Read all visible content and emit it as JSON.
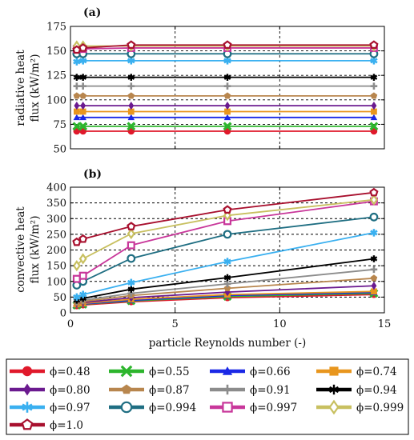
{
  "chart_data": [
    {
      "type": "line",
      "panel_label": "(a)",
      "ylabel_line1": "radiative heat",
      "ylabel_line2": "flux (kW/m²)",
      "xlim": [
        0,
        15
      ],
      "ylim": [
        50,
        175
      ],
      "yticks": [
        50,
        75,
        100,
        125,
        150,
        175
      ],
      "xticks": [
        0,
        5,
        10,
        15
      ],
      "grid": true,
      "x": [
        0.3,
        0.6,
        2.9,
        7.5,
        14.5
      ],
      "series": [
        {
          "name": "ϕ=0.48",
          "color": "#e0192b",
          "marker": "circle",
          "values": [
            68,
            68,
            68,
            68,
            68
          ]
        },
        {
          "name": "ϕ=0.55",
          "color": "#2db52d",
          "marker": "x",
          "values": [
            73,
            73,
            73,
            73,
            73
          ]
        },
        {
          "name": "ϕ=0.66",
          "color": "#1a28e6",
          "marker": "triangle",
          "values": [
            82,
            82,
            82,
            82,
            82
          ]
        },
        {
          "name": "ϕ=0.74",
          "color": "#e8961e",
          "marker": "square",
          "values": [
            88,
            88,
            88,
            88,
            88
          ]
        },
        {
          "name": "ϕ=0.80",
          "color": "#6b1a8f",
          "marker": "diamond",
          "values": [
            94,
            94,
            94,
            94,
            94
          ]
        },
        {
          "name": "ϕ=0.87",
          "color": "#b8864e",
          "marker": "pentagon",
          "values": [
            104,
            104,
            104,
            104,
            104
          ]
        },
        {
          "name": "ϕ=0.91",
          "color": "#8c8c8c",
          "marker": "plus",
          "values": [
            114,
            114,
            114,
            114,
            114
          ]
        },
        {
          "name": "ϕ=0.94",
          "color": "#000000",
          "marker": "asterisk",
          "values": [
            123,
            123,
            123,
            123,
            123
          ]
        },
        {
          "name": "ϕ=0.97",
          "color": "#3ab0f0",
          "marker": "star",
          "values": [
            139,
            140,
            140,
            140,
            140
          ]
        },
        {
          "name": "ϕ=0.994",
          "color": "#1f6e82",
          "marker": "circle-open",
          "values": [
            147,
            147,
            147,
            147,
            147
          ]
        },
        {
          "name": "ϕ=0.997",
          "color": "#c8379a",
          "marker": "square-open",
          "values": [
            152,
            152,
            153,
            153,
            153
          ]
        },
        {
          "name": "ϕ=0.999",
          "color": "#c8c060",
          "marker": "diamond-open",
          "values": [
            155,
            155,
            155,
            155,
            155
          ]
        },
        {
          "name": "ϕ=1.0",
          "color": "#a8102e",
          "marker": "pentagon-open",
          "values": [
            151,
            153,
            156,
            156,
            156
          ]
        }
      ]
    },
    {
      "type": "line",
      "panel_label": "(b)",
      "ylabel_line1": "convective heat",
      "ylabel_line2": "flux (kW/m²)",
      "xlabel": "particle Reynolds number (-)",
      "xlim": [
        0,
        15
      ],
      "ylim": [
        0,
        400
      ],
      "yticks": [
        0,
        50,
        100,
        150,
        200,
        250,
        300,
        350,
        400
      ],
      "xticks": [
        0,
        5,
        10,
        15
      ],
      "grid": true,
      "x": [
        0.3,
        0.6,
        2.9,
        7.5,
        14.5
      ],
      "series": [
        {
          "name": "ϕ=0.48",
          "color": "#e0192b",
          "marker": "circle",
          "values": [
            22,
            25,
            35,
            48,
            58
          ]
        },
        {
          "name": "ϕ=0.55",
          "color": "#2db52d",
          "marker": "x",
          "values": [
            24,
            27,
            38,
            52,
            62
          ]
        },
        {
          "name": "ϕ=0.66",
          "color": "#1a28e6",
          "marker": "triangle",
          "values": [
            25,
            28,
            40,
            55,
            65
          ]
        },
        {
          "name": "ϕ=0.74",
          "color": "#e8961e",
          "marker": "square",
          "values": [
            27,
            30,
            43,
            58,
            68
          ]
        },
        {
          "name": "ϕ=0.80",
          "color": "#6b1a8f",
          "marker": "diamond",
          "values": [
            30,
            33,
            48,
            66,
            86
          ]
        },
        {
          "name": "ϕ=0.87",
          "color": "#b8864e",
          "marker": "pentagon",
          "values": [
            32,
            36,
            55,
            78,
            110
          ]
        },
        {
          "name": "ϕ=0.91",
          "color": "#8c8c8c",
          "marker": "plus",
          "values": [
            36,
            40,
            62,
            92,
            138
          ]
        },
        {
          "name": "ϕ=0.94",
          "color": "#000000",
          "marker": "asterisk",
          "values": [
            40,
            46,
            75,
            112,
            172
          ]
        },
        {
          "name": "ϕ=0.97",
          "color": "#3ab0f0",
          "marker": "star",
          "values": [
            50,
            58,
            96,
            163,
            255
          ]
        },
        {
          "name": "ϕ=0.994",
          "color": "#1f6e82",
          "marker": "circle-open",
          "values": [
            88,
            100,
            173,
            250,
            305
          ]
        },
        {
          "name": "ϕ=0.997",
          "color": "#c8379a",
          "marker": "square-open",
          "values": [
            108,
            118,
            215,
            292,
            355
          ]
        },
        {
          "name": "ϕ=0.999",
          "color": "#c8c060",
          "marker": "diamond-open",
          "values": [
            150,
            172,
            252,
            310,
            360
          ]
        },
        {
          "name": "ϕ=1.0",
          "color": "#a8102e",
          "marker": "pentagon-open",
          "values": [
            225,
            235,
            275,
            328,
            383
          ]
        }
      ]
    }
  ],
  "legend": [
    {
      "label": "ϕ=0.48",
      "color": "#e0192b",
      "marker": "circle"
    },
    {
      "label": "ϕ=0.55",
      "color": "#2db52d",
      "marker": "x"
    },
    {
      "label": "ϕ=0.66",
      "color": "#1a28e6",
      "marker": "triangle"
    },
    {
      "label": "ϕ=0.74",
      "color": "#e8961e",
      "marker": "square"
    },
    {
      "label": "ϕ=0.80",
      "color": "#6b1a8f",
      "marker": "diamond"
    },
    {
      "label": "ϕ=0.87",
      "color": "#b8864e",
      "marker": "pentagon"
    },
    {
      "label": "ϕ=0.91",
      "color": "#8c8c8c",
      "marker": "plus"
    },
    {
      "label": "ϕ=0.94",
      "color": "#000000",
      "marker": "asterisk"
    },
    {
      "label": "ϕ=0.97",
      "color": "#3ab0f0",
      "marker": "star"
    },
    {
      "label": "ϕ=0.994",
      "color": "#1f6e82",
      "marker": "circle-open"
    },
    {
      "label": "ϕ=0.997",
      "color": "#c8379a",
      "marker": "square-open"
    },
    {
      "label": "ϕ=0.999",
      "color": "#c8c060",
      "marker": "diamond-open"
    },
    {
      "label": "ϕ=1.0",
      "color": "#a8102e",
      "marker": "pentagon-open"
    }
  ]
}
